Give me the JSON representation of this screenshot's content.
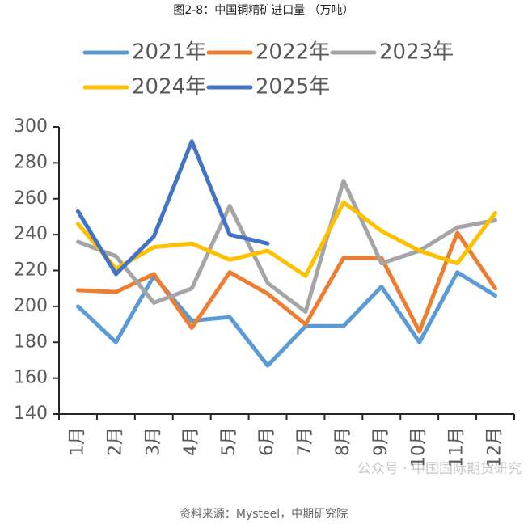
{
  "chart_data": {
    "type": "line",
    "title": "图2-8：中国铜精矿进口量 （万吨）",
    "source": "资料来源：Mysteel，中期研究院",
    "watermark": "公众号 · 中国国际期货研究",
    "categories": [
      "1月",
      "2月",
      "3月",
      "4月",
      "5月",
      "6月",
      "7月",
      "8月",
      "9月",
      "10月",
      "11月",
      "12月"
    ],
    "series": [
      {
        "name": "2021年",
        "color": "#5b9bd5",
        "values": [
          200,
          180,
          217,
          192,
          194,
          167,
          189,
          189,
          211,
          180,
          219,
          206
        ]
      },
      {
        "name": "2022年",
        "color": "#ed7d31",
        "values": [
          209,
          208,
          218,
          188,
          219,
          207,
          190,
          227,
          227,
          186,
          241,
          210
        ]
      },
      {
        "name": "2023年",
        "color": "#a5a5a5",
        "values": [
          236,
          228,
          202,
          210,
          256,
          213,
          197,
          270,
          224,
          231,
          244,
          248
        ]
      },
      {
        "name": "2024年",
        "color": "#ffc000",
        "values": [
          246,
          221,
          233,
          235,
          226,
          231,
          217,
          258,
          242,
          231,
          224,
          252
        ]
      },
      {
        "name": "2025年",
        "color": "#4472c4",
        "values": [
          253,
          218,
          239,
          292,
          240,
          235,
          null,
          null,
          null,
          null,
          null,
          null
        ]
      }
    ],
    "ylim": [
      140,
      300
    ],
    "yticks": [
      140,
      160,
      180,
      200,
      220,
      240,
      260,
      280,
      300
    ],
    "legend": "top"
  }
}
